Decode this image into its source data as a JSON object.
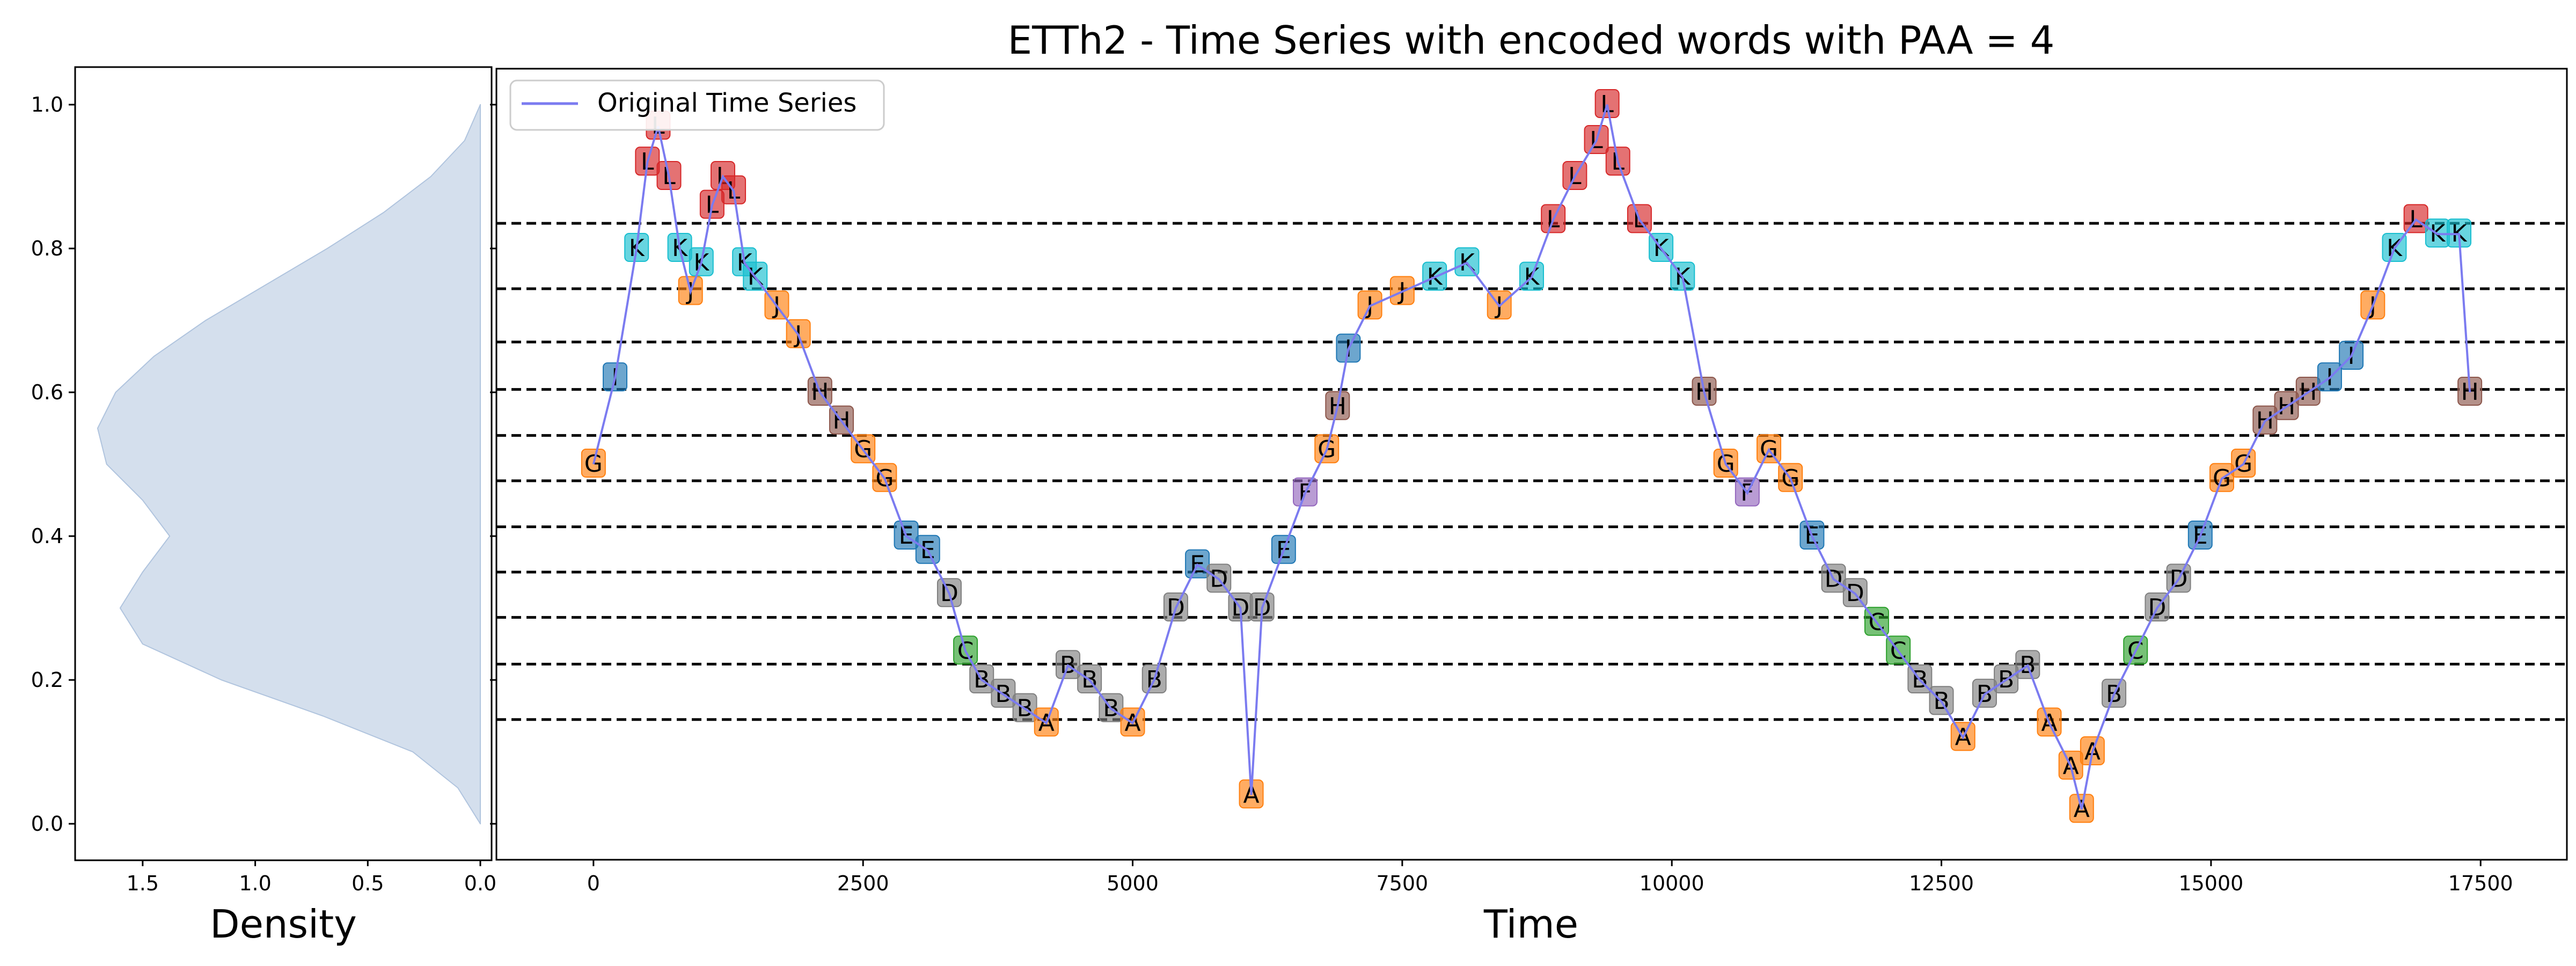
{
  "chart_data": {
    "type": "line",
    "title": "ETTh2 - Time Series with encoded words with PAA = 4",
    "xlabel": "Time",
    "ylabel": "",
    "xlim": [
      -900,
      18300
    ],
    "ylim": [
      -0.05,
      1.05
    ],
    "x_ticks": [
      0,
      2500,
      5000,
      7500,
      10000,
      12500,
      15000,
      17500
    ],
    "y_ticks": [
      0.0,
      0.2,
      0.4,
      0.6,
      0.8,
      1.0
    ],
    "grid": false,
    "legend": {
      "position": "top-left",
      "entries": [
        "Original Time Series"
      ]
    },
    "series": [
      {
        "name": "Original Time Series",
        "color": "#7b7bf0",
        "x": [
          0,
          200,
          400,
          500,
          600,
          700,
          800,
          900,
          1000,
          1100,
          1200,
          1300,
          1400,
          1500,
          1700,
          1900,
          2100,
          2300,
          2500,
          2700,
          2900,
          3100,
          3300,
          3450,
          3600,
          3800,
          4000,
          4200,
          4400,
          4600,
          4800,
          5000,
          5200,
          5400,
          5600,
          5800,
          6000,
          6100,
          6200,
          6400,
          6600,
          6800,
          6900,
          7000,
          7200,
          7500,
          7800,
          8100,
          8400,
          8700,
          8900,
          9100,
          9300,
          9400,
          9500,
          9700,
          9900,
          10100,
          10300,
          10500,
          10700,
          10900,
          11100,
          11300,
          11500,
          11700,
          11900,
          12100,
          12300,
          12500,
          12700,
          12900,
          13100,
          13300,
          13500,
          13700,
          13800,
          13900,
          14100,
          14300,
          14500,
          14700,
          14900,
          15100,
          15300,
          15500,
          15700,
          15900,
          16100,
          16300,
          16500,
          16700,
          16900,
          17100,
          17300,
          17400
        ],
        "y": [
          0.5,
          0.62,
          0.8,
          0.92,
          0.97,
          0.9,
          0.8,
          0.74,
          0.78,
          0.86,
          0.9,
          0.88,
          0.78,
          0.76,
          0.72,
          0.68,
          0.6,
          0.56,
          0.52,
          0.48,
          0.4,
          0.38,
          0.32,
          0.24,
          0.2,
          0.18,
          0.16,
          0.14,
          0.22,
          0.2,
          0.16,
          0.14,
          0.2,
          0.3,
          0.36,
          0.34,
          0.3,
          0.04,
          0.3,
          0.38,
          0.46,
          0.52,
          0.58,
          0.66,
          0.72,
          0.74,
          0.76,
          0.78,
          0.72,
          0.76,
          0.84,
          0.9,
          0.95,
          1.0,
          0.92,
          0.84,
          0.8,
          0.76,
          0.6,
          0.5,
          0.46,
          0.52,
          0.48,
          0.4,
          0.34,
          0.32,
          0.28,
          0.24,
          0.2,
          0.17,
          0.12,
          0.18,
          0.2,
          0.22,
          0.14,
          0.08,
          0.02,
          0.1,
          0.18,
          0.24,
          0.3,
          0.34,
          0.4,
          0.48,
          0.5,
          0.56,
          0.58,
          0.6,
          0.62,
          0.65,
          0.72,
          0.8,
          0.84,
          0.82,
          0.82,
          0.6
        ]
      }
    ],
    "breakpoints": [
      0.145,
      0.222,
      0.287,
      0.35,
      0.413,
      0.477,
      0.54,
      0.604,
      0.67,
      0.744,
      0.835
    ],
    "encoded_letters": [
      "A",
      "B",
      "C",
      "D",
      "E",
      "F",
      "G",
      "H",
      "I",
      "J",
      "K",
      "L"
    ],
    "letter_colors": [
      "#ff7f0e",
      "#7f7f7f",
      "#2ca02c",
      "#7f7f7f",
      "#1f77b4",
      "#9467bd",
      "#ff7f0e",
      "#8c564b",
      "#1f77b4",
      "#ff7f0e",
      "#17becf",
      "#d62728"
    ],
    "density": {
      "xlabel": "Density",
      "x_ticks": [
        "1.5",
        "1.0",
        "0.5",
        "0.0"
      ],
      "y": [
        0.0,
        0.05,
        0.1,
        0.15,
        0.2,
        0.25,
        0.3,
        0.35,
        0.4,
        0.45,
        0.5,
        0.55,
        0.6,
        0.65,
        0.7,
        0.75,
        0.8,
        0.85,
        0.9,
        0.95,
        1.0
      ],
      "values": [
        0.0,
        0.1,
        0.3,
        0.7,
        1.15,
        1.5,
        1.6,
        1.5,
        1.38,
        1.5,
        1.66,
        1.7,
        1.62,
        1.45,
        1.22,
        0.95,
        0.68,
        0.43,
        0.22,
        0.07,
        0.0
      ],
      "fill_color": "#b0c4de"
    }
  }
}
